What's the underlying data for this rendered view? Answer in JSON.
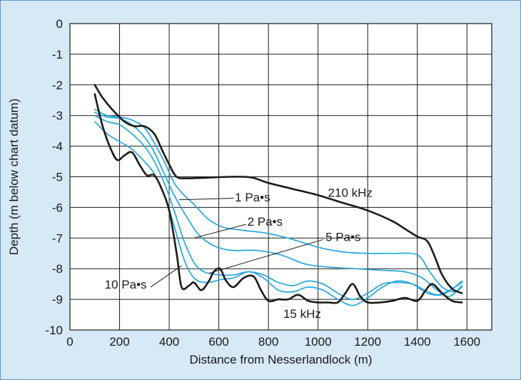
{
  "chart_data": {
    "type": "line",
    "title": "",
    "xlabel": "Distance from Nesserlandlock (m)",
    "ylabel": "Depth (m below chart datum)",
    "xlim": [
      0,
      1700
    ],
    "ylim": [
      -10,
      0
    ],
    "xticks": [
      0,
      200,
      400,
      600,
      800,
      1000,
      1200,
      1400,
      1600
    ],
    "yticks": [
      0,
      -1,
      -2,
      -3,
      -4,
      -5,
      -6,
      -7,
      -8,
      -9,
      -10
    ],
    "grid": true,
    "legend": "none",
    "colors": {
      "black": "#1a1a1a",
      "blue": "#27a6db",
      "plot_bg": "#ffffff",
      "figure_bg": "#d6e9f7",
      "grid": "#1a1a1a"
    },
    "series": [
      {
        "name": "210 kHz",
        "color": "#1a1a1a",
        "points": [
          [
            100,
            -2.0
          ],
          [
            130,
            -2.4
          ],
          [
            170,
            -2.8
          ],
          [
            220,
            -3.2
          ],
          [
            260,
            -3.35
          ],
          [
            300,
            -3.35
          ],
          [
            340,
            -3.6
          ],
          [
            370,
            -4.1
          ],
          [
            400,
            -4.6
          ],
          [
            430,
            -5.0
          ],
          [
            470,
            -5.05
          ],
          [
            550,
            -5.03
          ],
          [
            650,
            -5.0
          ],
          [
            730,
            -5.02
          ],
          [
            800,
            -5.2
          ],
          [
            900,
            -5.4
          ],
          [
            1000,
            -5.6
          ],
          [
            1100,
            -5.85
          ],
          [
            1200,
            -6.1
          ],
          [
            1300,
            -6.45
          ],
          [
            1350,
            -6.7
          ],
          [
            1400,
            -6.95
          ],
          [
            1440,
            -7.1
          ],
          [
            1470,
            -7.6
          ],
          [
            1500,
            -8.2
          ],
          [
            1540,
            -8.65
          ],
          [
            1580,
            -8.8
          ]
        ]
      },
      {
        "name": "15 kHz",
        "color": "#1a1a1a",
        "points": [
          [
            100,
            -2.3
          ],
          [
            130,
            -3.3
          ],
          [
            160,
            -4.0
          ],
          [
            190,
            -4.45
          ],
          [
            220,
            -4.3
          ],
          [
            250,
            -4.2
          ],
          [
            280,
            -4.6
          ],
          [
            310,
            -4.95
          ],
          [
            340,
            -4.95
          ],
          [
            370,
            -5.4
          ],
          [
            400,
            -6.1
          ],
          [
            430,
            -7.5
          ],
          [
            450,
            -8.6
          ],
          [
            480,
            -8.55
          ],
          [
            500,
            -8.45
          ],
          [
            530,
            -8.7
          ],
          [
            560,
            -8.4
          ],
          [
            580,
            -8.1
          ],
          [
            605,
            -8.0
          ],
          [
            630,
            -8.4
          ],
          [
            660,
            -8.6
          ],
          [
            700,
            -8.3
          ],
          [
            740,
            -8.25
          ],
          [
            770,
            -8.7
          ],
          [
            800,
            -9.05
          ],
          [
            840,
            -9.0
          ],
          [
            880,
            -9.0
          ],
          [
            920,
            -8.85
          ],
          [
            960,
            -9.05
          ],
          [
            1000,
            -9.1
          ],
          [
            1040,
            -9.1
          ],
          [
            1080,
            -9.1
          ],
          [
            1110,
            -8.8
          ],
          [
            1140,
            -8.5
          ],
          [
            1170,
            -8.9
          ],
          [
            1200,
            -9.1
          ],
          [
            1250,
            -9.1
          ],
          [
            1300,
            -9.05
          ],
          [
            1350,
            -8.95
          ],
          [
            1400,
            -9.05
          ],
          [
            1430,
            -8.75
          ],
          [
            1460,
            -8.5
          ],
          [
            1500,
            -8.8
          ],
          [
            1540,
            -9.05
          ],
          [
            1580,
            -9.1
          ]
        ]
      },
      {
        "name": "1 Pa•s",
        "color": "#27a6db",
        "points": [
          [
            100,
            -2.8
          ],
          [
            150,
            -3.0
          ],
          [
            200,
            -3.05
          ],
          [
            250,
            -3.15
          ],
          [
            300,
            -3.4
          ],
          [
            340,
            -3.9
          ],
          [
            380,
            -4.5
          ],
          [
            420,
            -5.2
          ],
          [
            460,
            -5.6
          ],
          [
            500,
            -5.9
          ],
          [
            560,
            -6.4
          ],
          [
            620,
            -6.65
          ],
          [
            700,
            -6.75
          ],
          [
            800,
            -6.85
          ],
          [
            900,
            -7.05
          ],
          [
            1000,
            -7.3
          ],
          [
            1100,
            -7.45
          ],
          [
            1200,
            -7.5
          ],
          [
            1300,
            -7.5
          ],
          [
            1400,
            -7.55
          ],
          [
            1450,
            -8.1
          ],
          [
            1500,
            -8.6
          ],
          [
            1550,
            -8.75
          ],
          [
            1580,
            -8.6
          ]
        ]
      },
      {
        "name": "2 Pa•s",
        "color": "#27a6db",
        "points": [
          [
            100,
            -2.9
          ],
          [
            150,
            -3.05
          ],
          [
            200,
            -3.1
          ],
          [
            250,
            -3.3
          ],
          [
            300,
            -3.7
          ],
          [
            340,
            -4.2
          ],
          [
            380,
            -4.9
          ],
          [
            420,
            -5.6
          ],
          [
            470,
            -6.3
          ],
          [
            520,
            -6.9
          ],
          [
            580,
            -7.25
          ],
          [
            650,
            -7.4
          ],
          [
            750,
            -7.4
          ],
          [
            850,
            -7.55
          ],
          [
            950,
            -7.85
          ],
          [
            1050,
            -7.95
          ],
          [
            1150,
            -8.0
          ],
          [
            1250,
            -8.05
          ],
          [
            1350,
            -8.1
          ],
          [
            1420,
            -8.3
          ],
          [
            1480,
            -8.7
          ],
          [
            1530,
            -8.9
          ],
          [
            1580,
            -8.55
          ]
        ]
      },
      {
        "name": "5 Pa•s",
        "color": "#27a6db",
        "points": [
          [
            100,
            -3.0
          ],
          [
            150,
            -3.2
          ],
          [
            200,
            -3.3
          ],
          [
            250,
            -3.6
          ],
          [
            300,
            -4.0
          ],
          [
            340,
            -4.5
          ],
          [
            380,
            -5.2
          ],
          [
            420,
            -6.1
          ],
          [
            460,
            -7.1
          ],
          [
            500,
            -7.8
          ],
          [
            540,
            -8.1
          ],
          [
            600,
            -8.2
          ],
          [
            660,
            -8.2
          ],
          [
            720,
            -8.1
          ],
          [
            780,
            -8.2
          ],
          [
            840,
            -8.45
          ],
          [
            900,
            -8.55
          ],
          [
            960,
            -8.4
          ],
          [
            1020,
            -8.5
          ],
          [
            1080,
            -8.8
          ],
          [
            1140,
            -9.0
          ],
          [
            1200,
            -8.8
          ],
          [
            1260,
            -8.5
          ],
          [
            1320,
            -8.45
          ],
          [
            1380,
            -8.5
          ],
          [
            1430,
            -8.7
          ],
          [
            1480,
            -8.85
          ],
          [
            1530,
            -8.7
          ],
          [
            1580,
            -8.45
          ]
        ]
      },
      {
        "name": "10 Pa•s",
        "color": "#27a6db",
        "points": [
          [
            100,
            -3.2
          ],
          [
            150,
            -3.6
          ],
          [
            200,
            -3.85
          ],
          [
            250,
            -4.1
          ],
          [
            300,
            -4.5
          ],
          [
            340,
            -4.9
          ],
          [
            380,
            -5.6
          ],
          [
            420,
            -6.6
          ],
          [
            460,
            -7.7
          ],
          [
            500,
            -8.3
          ],
          [
            550,
            -8.45
          ],
          [
            610,
            -8.35
          ],
          [
            660,
            -8.3
          ],
          [
            720,
            -8.1
          ],
          [
            780,
            -8.3
          ],
          [
            840,
            -8.7
          ],
          [
            900,
            -8.75
          ],
          [
            960,
            -8.6
          ],
          [
            1020,
            -8.7
          ],
          [
            1080,
            -9.0
          ],
          [
            1140,
            -9.2
          ],
          [
            1200,
            -8.95
          ],
          [
            1260,
            -8.6
          ],
          [
            1320,
            -8.4
          ],
          [
            1380,
            -8.5
          ],
          [
            1440,
            -8.8
          ],
          [
            1500,
            -8.85
          ],
          [
            1550,
            -8.6
          ],
          [
            1580,
            -8.4
          ]
        ]
      }
    ],
    "annotations": [
      {
        "text": "210 kHz",
        "x": 1040,
        "y": -5.65,
        "leader": null
      },
      {
        "text": "1 Pa•s",
        "x": 665,
        "y": -5.8,
        "leader": [
          [
            660,
            -5.7
          ],
          [
            440,
            -5.75
          ]
        ]
      },
      {
        "text": "2 Pa•s",
        "x": 715,
        "y": -6.6,
        "leader": [
          [
            710,
            -6.55
          ],
          [
            500,
            -7.0
          ]
        ]
      },
      {
        "text": "5 Pa•s",
        "x": 1030,
        "y": -7.1,
        "leader": [
          [
            1020,
            -7.05
          ],
          [
            560,
            -8.15
          ]
        ]
      },
      {
        "text": "10 Pa•s",
        "x": 140,
        "y": -8.65,
        "leader": [
          [
            325,
            -8.6
          ],
          [
            450,
            -7.9
          ]
        ]
      },
      {
        "text": "15 kHz",
        "x": 860,
        "y": -9.6,
        "leader": null
      }
    ]
  }
}
